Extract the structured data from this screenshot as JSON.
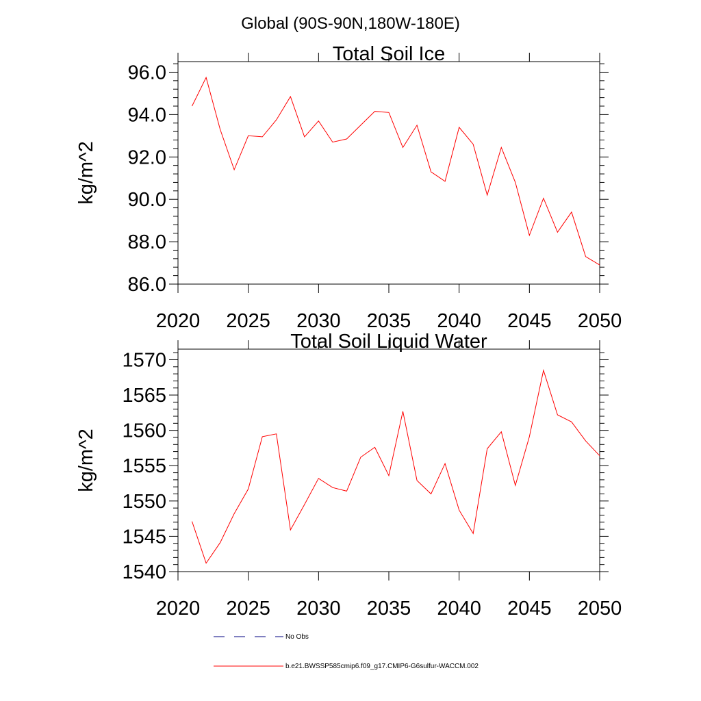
{
  "figure": {
    "title": "Global (90S-90N,180W-180E)"
  },
  "chart_data": [
    {
      "type": "line",
      "title": "Total Soil Ice",
      "xlabel": "",
      "ylabel": "kg/m^2",
      "xlim": [
        2020,
        2050
      ],
      "ylim": [
        86.0,
        96.5
      ],
      "x_ticks": [
        2020,
        2025,
        2030,
        2035,
        2040,
        2045,
        2050
      ],
      "x_tick_labels": [
        "2020",
        "2025",
        "2030",
        "2035",
        "2040",
        "2045",
        "2050"
      ],
      "y_ticks": [
        86.0,
        88.0,
        90.0,
        92.0,
        94.0,
        96.0
      ],
      "y_tick_labels": [
        "86.0",
        "88.0",
        "90.0",
        "92.0",
        "94.0",
        "96.0"
      ],
      "grid": false,
      "series": [
        {
          "color": "#ff0000",
          "x": [
            2021,
            2022,
            2023,
            2024,
            2025,
            2026,
            2027,
            2028,
            2029,
            2030,
            2031,
            2032,
            2033,
            2034,
            2035,
            2036,
            2037,
            2038,
            2039,
            2040,
            2041,
            2042,
            2043,
            2044,
            2045,
            2046,
            2047,
            2048,
            2049,
            2050
          ],
          "y": [
            94.4,
            95.75,
            93.3,
            91.4,
            93.0,
            92.95,
            93.75,
            94.85,
            92.95,
            93.7,
            92.7,
            92.85,
            93.5,
            94.15,
            94.1,
            92.45,
            93.5,
            91.3,
            90.85,
            93.4,
            92.6,
            90.2,
            92.45,
            90.8,
            88.3,
            90.05,
            88.45,
            89.4,
            87.3,
            86.9
          ]
        }
      ]
    },
    {
      "type": "line",
      "title": "Total Soil Liquid Water",
      "xlabel": "",
      "ylabel": "kg/m^2",
      "xlim": [
        2020,
        2050
      ],
      "ylim": [
        1540,
        1571.5
      ],
      "x_ticks": [
        2020,
        2025,
        2030,
        2035,
        2040,
        2045,
        2050
      ],
      "x_tick_labels": [
        "2020",
        "2025",
        "2030",
        "2035",
        "2040",
        "2045",
        "2050"
      ],
      "y_ticks": [
        1540,
        1545,
        1550,
        1555,
        1560,
        1565,
        1570
      ],
      "y_tick_labels": [
        "1540",
        "1545",
        "1550",
        "1555",
        "1560",
        "1565",
        "1570"
      ],
      "grid": false,
      "series": [
        {
          "color": "#ff0000",
          "x": [
            2021,
            2022,
            2023,
            2024,
            2025,
            2026,
            2027,
            2028,
            2029,
            2030,
            2031,
            2032,
            2033,
            2034,
            2035,
            2036,
            2037,
            2038,
            2039,
            2040,
            2041,
            2042,
            2043,
            2044,
            2045,
            2046,
            2047,
            2048,
            2049,
            2050
          ],
          "y": [
            1547.1,
            1541.2,
            1544.1,
            1548.2,
            1551.7,
            1559.1,
            1559.5,
            1545.9,
            1549.5,
            1553.2,
            1551.9,
            1551.4,
            1556.2,
            1557.6,
            1553.6,
            1562.7,
            1552.9,
            1551.0,
            1555.3,
            1548.7,
            1545.4,
            1557.4,
            1559.8,
            1552.2,
            1559.1,
            1568.5,
            1562.2,
            1561.2,
            1558.5,
            1556.4
          ]
        }
      ]
    }
  ],
  "legend": {
    "placement": "bottom-center",
    "items": [
      {
        "label": "No Obs",
        "style": "dashed",
        "color": "#000080"
      },
      {
        "label": "b.e21.BWSSP585cmip6.f09_g17.CMIP6-G6sulfur-WACCM.002",
        "style": "solid",
        "color": "#ff0000"
      }
    ]
  }
}
